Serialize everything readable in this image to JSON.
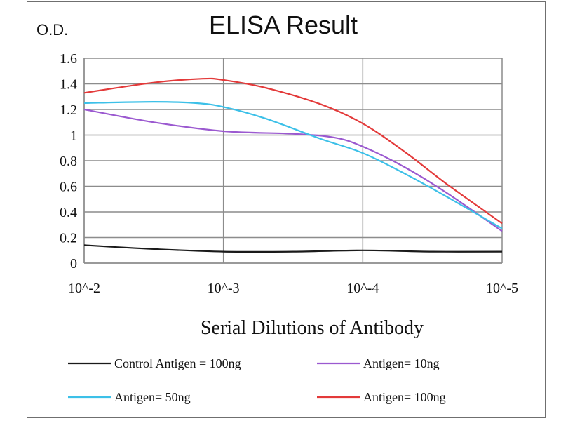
{
  "chart_data": {
    "type": "line",
    "title": "ELISA Result",
    "ylabel": "O.D.",
    "xlabel": "Serial Dilutions  of Antibody",
    "categories": [
      "10^-2",
      "10^-3",
      "10^-4",
      "10^-5"
    ],
    "y_ticks": [
      "0",
      "0.2",
      "0.4",
      "0.6",
      "0.8",
      "1",
      "1.2",
      "1.4",
      "1.6"
    ],
    "ylim": [
      0,
      1.6
    ],
    "grid": true,
    "legend_position": "bottom",
    "x_log_exponents": [
      -2,
      -3,
      -4,
      -5
    ],
    "series": [
      {
        "name": "Control Antigen = 100ng",
        "color": "#1a1a1a",
        "points": [
          [
            -2,
            0.14
          ],
          [
            -2.5,
            0.11
          ],
          [
            -3,
            0.09
          ],
          [
            -3.5,
            0.09
          ],
          [
            -4,
            0.1
          ],
          [
            -4.5,
            0.09
          ],
          [
            -5,
            0.09
          ]
        ]
      },
      {
        "name": "Antigen= 10ng",
        "color": "#9b59d0",
        "points": [
          [
            -2,
            1.2
          ],
          [
            -2.5,
            1.1
          ],
          [
            -3,
            1.03
          ],
          [
            -3.5,
            1.01
          ],
          [
            -3.8,
            0.98
          ],
          [
            -4,
            0.91
          ],
          [
            -4.3,
            0.75
          ],
          [
            -4.6,
            0.55
          ],
          [
            -5,
            0.25
          ]
        ]
      },
      {
        "name": "Antigen= 50ng",
        "color": "#3cc0e8",
        "points": [
          [
            -2,
            1.25
          ],
          [
            -2.5,
            1.26
          ],
          [
            -2.8,
            1.25
          ],
          [
            -3,
            1.22
          ],
          [
            -3.3,
            1.13
          ],
          [
            -3.7,
            0.97
          ],
          [
            -4,
            0.86
          ],
          [
            -4.3,
            0.7
          ],
          [
            -4.6,
            0.52
          ],
          [
            -5,
            0.27
          ]
        ]
      },
      {
        "name": "Antigen= 100ng",
        "color": "#e33a3a",
        "points": [
          [
            -2,
            1.33
          ],
          [
            -2.5,
            1.41
          ],
          [
            -2.85,
            1.44
          ],
          [
            -3,
            1.43
          ],
          [
            -3.3,
            1.37
          ],
          [
            -3.7,
            1.24
          ],
          [
            -4,
            1.09
          ],
          [
            -4.3,
            0.87
          ],
          [
            -4.6,
            0.62
          ],
          [
            -5,
            0.31
          ]
        ]
      }
    ]
  }
}
